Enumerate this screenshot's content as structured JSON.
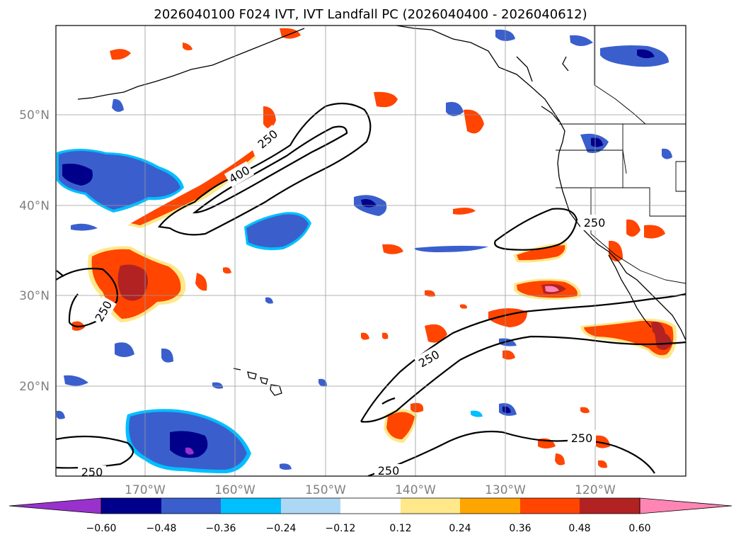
{
  "title": "2026040100 F024 IVT, IVT Landfall PC (2026040400 - 2026040612)",
  "lon_labels": [
    "170°W",
    "160°W",
    "150°W",
    "140°W",
    "130°W",
    "120°W"
  ],
  "lat_labels": [
    "50°N",
    "40°N",
    "30°N",
    "20°N"
  ],
  "contour_labels": [
    "250",
    "400",
    "250",
    "250",
    "250",
    "250",
    "250",
    "250"
  ],
  "colorbar": {
    "ticks": [
      "−0.60",
      "−0.48",
      "−0.36",
      "−0.24",
      "−0.12",
      "0.12",
      "0.24",
      "0.36",
      "0.48",
      "0.60"
    ],
    "colors": [
      "#9932cc",
      "#00008b",
      "#3a5fcd",
      "#00bfff",
      "#add8f5",
      "#ffffff",
      "#ffe88a",
      "#ffa500",
      "#ff4500",
      "#b22222",
      "#ff85b4"
    ]
  },
  "colors": {
    "orange_red": "#ff4500",
    "orange": "#ffa500",
    "yellow": "#ffe88a",
    "dark_red": "#b22222",
    "pink": "#ff85b4",
    "blue": "#3a5fcd",
    "navy": "#00008b",
    "sky": "#00bfff",
    "purple": "#9932cc"
  }
}
